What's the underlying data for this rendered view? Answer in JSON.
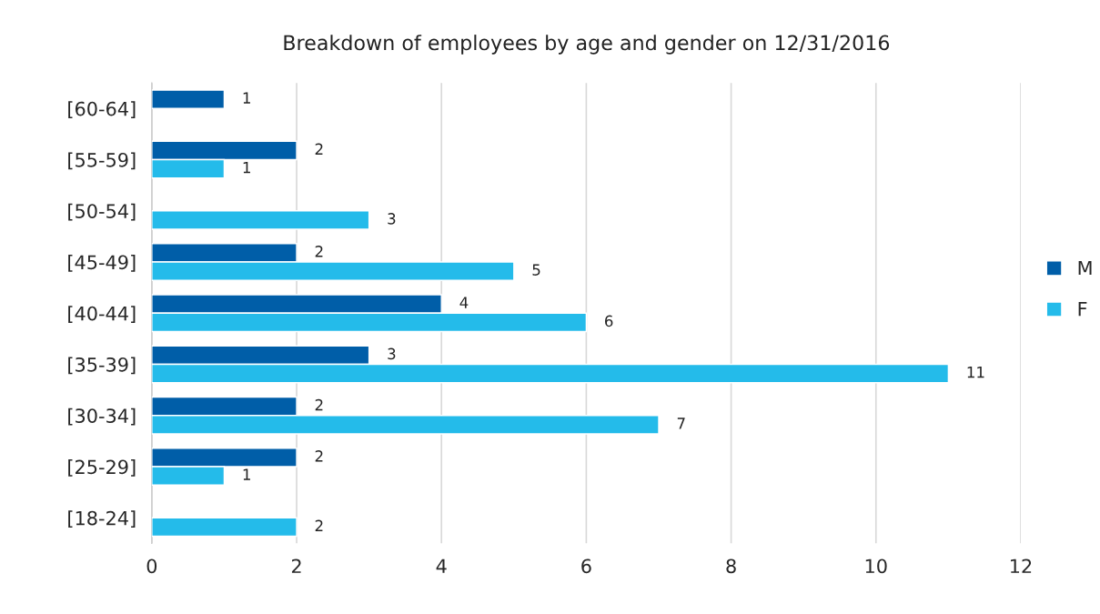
{
  "chart_data": {
    "type": "bar",
    "orientation": "horizontal",
    "title": "Breakdown of employees by age and gender on 12/31/2016",
    "categories": [
      "[60-64]",
      "[55-59]",
      "[50-54]",
      "[45-49]",
      "[40-44]",
      "[35-39]",
      "[30-34]",
      "[25-29]",
      "[18-24]"
    ],
    "series": [
      {
        "name": "M",
        "color": "#005ea8",
        "values": [
          1,
          2,
          null,
          2,
          4,
          3,
          2,
          2,
          null
        ]
      },
      {
        "name": "F",
        "color": "#24bbea",
        "values": [
          null,
          1,
          3,
          5,
          6,
          11,
          7,
          1,
          2
        ]
      }
    ],
    "xlim": [
      0,
      12
    ],
    "xticks": [
      0,
      2,
      4,
      6,
      8,
      10,
      12
    ],
    "grid": "x",
    "legend": "right",
    "data_labels": true
  }
}
